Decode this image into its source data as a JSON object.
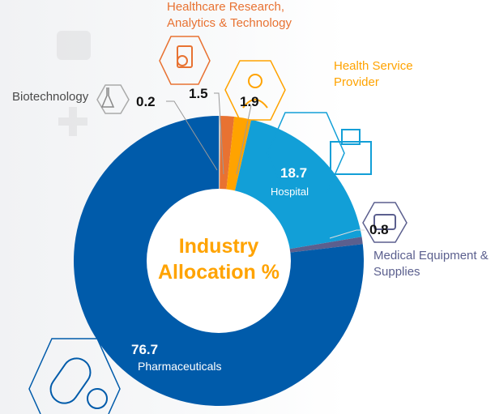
{
  "chart_data": {
    "type": "pie",
    "variant": "donut",
    "center_label": "Industry Allocation %",
    "slices": [
      {
        "label": "Biotechnology",
        "value": 0.2,
        "color": "#C9C9C9",
        "icon": "flask-plant-icon"
      },
      {
        "label": "Healthcare Research, Analytics & Technology",
        "value": 1.5,
        "color": "#E87232",
        "icon": "clipboard-magnifier-icon"
      },
      {
        "label": "Health Service Provider",
        "value": 1.9,
        "color": "#FFA300",
        "icon": "doctor-icon"
      },
      {
        "label": "Hospital",
        "value": 18.7,
        "color": "#129FD7",
        "icon": "hospital-building-icon"
      },
      {
        "label": "Medical Equipment & Supplies",
        "value": 0.8,
        "color": "#5B5F8E",
        "icon": "medical-kit-icon"
      },
      {
        "label": "Pharmaceuticals",
        "value": 76.7,
        "color": "#005BAA",
        "icon": "pill-capsule-icon"
      }
    ],
    "label_colors": {
      "Biotechnology": "#4a4a4a",
      "Healthcare Research, Analytics & Technology": "#E87232",
      "Health Service Provider": "#FFA300",
      "Hospital": "#ffffff",
      "Medical Equipment & Supplies": "#5B5F8E",
      "Pharmaceuticals": "#ffffff"
    }
  }
}
